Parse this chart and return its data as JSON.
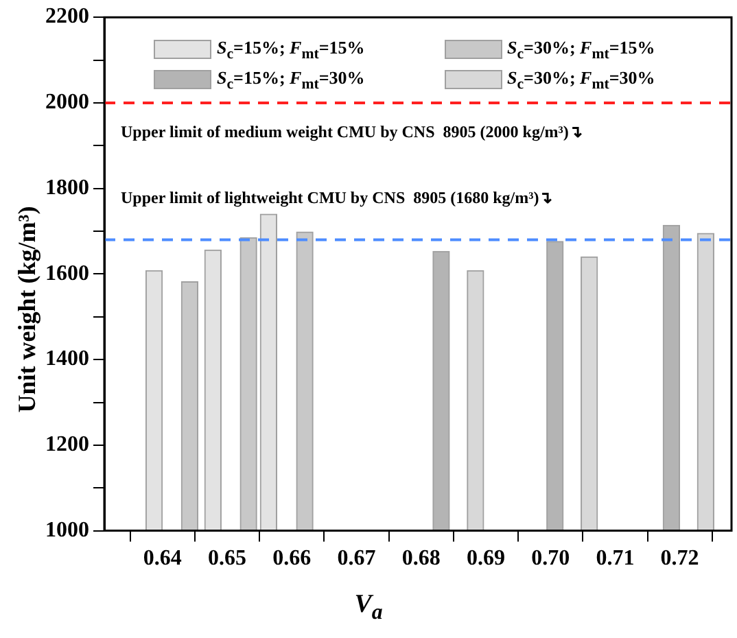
{
  "chart_data": {
    "type": "bar",
    "xlabel": "V$_{a}$",
    "ylabel": "Unit weight (kg/m³)",
    "xlim": [
      0.631,
      0.728
    ],
    "xticks": [
      0.64,
      0.65,
      0.66,
      0.67,
      0.68,
      0.69,
      {
        "value": 0.7,
        "label": "0.70"
      },
      0.71,
      0.72
    ],
    "ylim": [
      1000,
      2200
    ],
    "yticks": [
      1000,
      {
        "value": 1100,
        "label": null
      },
      1200,
      {
        "value": 1300,
        "label": null
      },
      1400,
      {
        "value": 1500,
        "label": null
      },
      1600,
      {
        "value": 1700,
        "label": null
      },
      1800,
      {
        "value": 1900,
        "label": null
      },
      2000,
      {
        "value": 2100,
        "label": null
      },
      2200
    ],
    "grid": false,
    "legend": "top",
    "series": [
      {
        "name": "S$_{c}$=15%; F$_{mt}$=15%",
        "color": "#e3e3e3",
        "x": [
          0.6387,
          0.6478,
          0.6564
        ],
        "values": [
          1608,
          1656,
          1740
        ]
      },
      {
        "name": "S$_{c}$=30%; F$_{mt}$=15%",
        "color": "#c8c8c8",
        "x": [
          0.6442,
          0.6533,
          0.662
        ],
        "values": [
          1582,
          1685,
          1698
        ]
      },
      {
        "name": "S$_{c}$=15%; F$_{mt}$=30%",
        "color": "#b4b4b4",
        "x": [
          0.6831,
          0.7007,
          0.7187
        ],
        "values": [
          1653,
          1676,
          1714
        ]
      },
      {
        "name": "S$_{c}$=30%; F$_{mt}$=30%",
        "color": "#d8d8d8",
        "x": [
          0.6884,
          0.706,
          0.724
        ],
        "values": [
          1608,
          1640,
          1695
        ]
      }
    ],
    "ref_lines": [
      {
        "axis": "y",
        "value": 2000,
        "label": "Upper limit of medium weight CMU by CNS  8905 (2000 kg/m³)↴",
        "color": "#ff2020",
        "line_style": "dashed"
      },
      {
        "axis": "y",
        "value": 1680,
        "label": "Upper limit of lightweight CMU by CNS  8905 (1680 kg/m³)↴",
        "color": "#4d8cff",
        "line_style": "dashed"
      }
    ]
  }
}
